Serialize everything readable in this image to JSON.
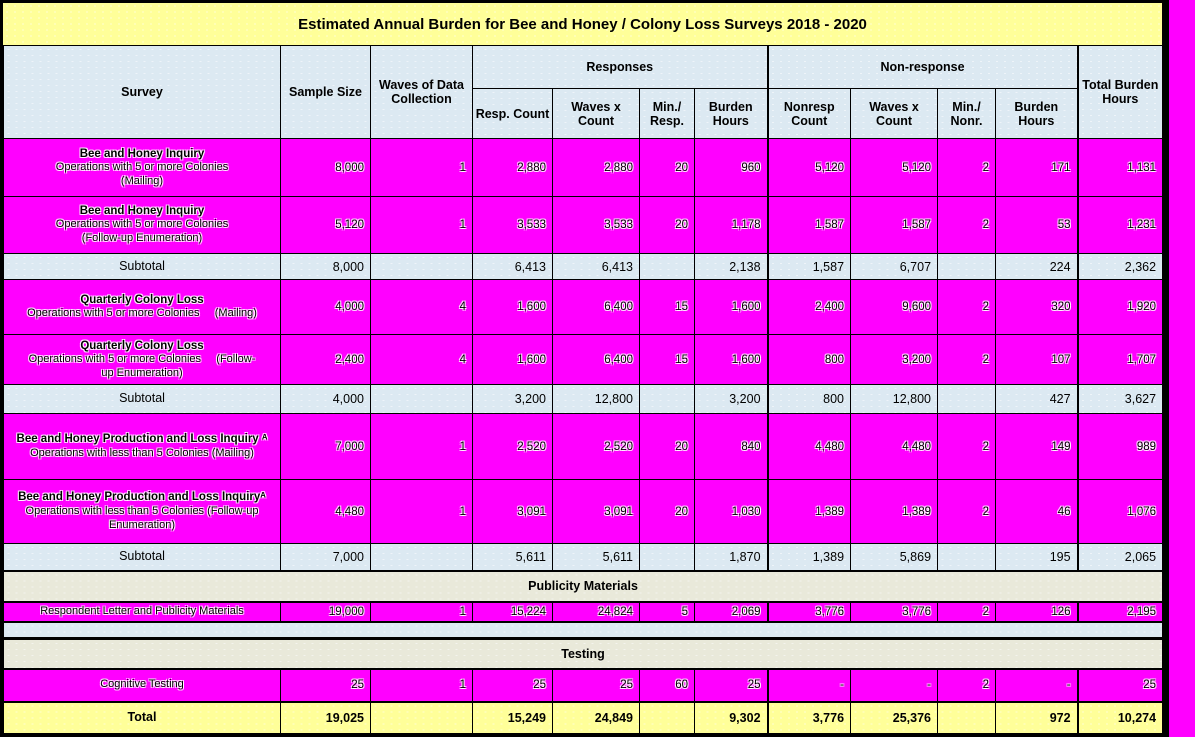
{
  "title": "Estimated Annual Burden for Bee and Honey / Colony Loss Surveys 2018 - 2020",
  "header": {
    "survey": "Survey",
    "sample_size": "Sample Size",
    "waves": "Waves of Data Collection",
    "responses_group": "Responses",
    "nonresponse_group": "Non-response",
    "total_burden": "Total Burden Hours",
    "resp_cols": [
      "Resp. Count",
      "Waves x Count",
      "Min./ Resp.",
      "Burden Hours"
    ],
    "nonresp_cols": [
      "Nonresp Count",
      "Waves x Count",
      "Min./ Nonr.",
      "Burden Hours"
    ]
  },
  "rows": [
    {
      "type": "data",
      "name": {
        "layout": "block",
        "bold": "Bee and Honey Inquiry",
        "normal": [
          "Operations with 5 or more Colonies",
          "(Mailing)"
        ]
      },
      "cells": [
        "8,000",
        "1",
        "2,880",
        "2,880",
        "20",
        "960",
        "5,120",
        "5,120",
        "2",
        "171",
        "1,131"
      ]
    },
    {
      "type": "data",
      "name": {
        "layout": "block",
        "bold": "Bee and Honey Inquiry",
        "normal": [
          "Operations with 5 or more Colonies",
          "(Follow-up Enumeration)"
        ]
      },
      "cells": [
        "5,120",
        "1",
        "3,533",
        "3,533",
        "20",
        "1,178",
        "1,587",
        "1,587",
        "2",
        "53",
        "1,231"
      ]
    },
    {
      "type": "subtotal",
      "label": "Subtotal",
      "cells": [
        "8,000",
        "",
        "6,413",
        "6,413",
        "",
        "2,138",
        "1,587",
        "6,707",
        "",
        "224",
        "2,362"
      ]
    },
    {
      "type": "data",
      "name": {
        "layout": "block",
        "bold": "Quarterly Colony Loss",
        "normal": [
          "Operations with 5 or more Colonies     (Mailing)"
        ]
      },
      "cells": [
        "4,000",
        "4",
        "1,600",
        "6,400",
        "15",
        "1,600",
        "2,400",
        "9,600",
        "2",
        "320",
        "1,920"
      ]
    },
    {
      "type": "data",
      "name": {
        "layout": "block",
        "bold": "Quarterly Colony Loss",
        "normal": [
          "Operations with 5 or more Colonies     (Follow-",
          "up Enumeration)"
        ]
      },
      "cells": [
        "2,400",
        "4",
        "1,600",
        "6,400",
        "15",
        "1,600",
        "800",
        "3,200",
        "2",
        "107",
        "1,707"
      ]
    },
    {
      "type": "subtotal",
      "label": "Subtotal",
      "cells": [
        "4,000",
        "",
        "3,200",
        "12,800",
        "",
        "3,200",
        "800",
        "12,800",
        "",
        "427",
        "3,627"
      ]
    },
    {
      "type": "data",
      "name": {
        "layout": "inline",
        "bold": "Bee and Honey Production and Loss Inquiry ᴬ",
        "normal": [
          "Operations with less than 5 Colonies (Mailing)"
        ]
      },
      "cells": [
        "7,000",
        "1",
        "2,520",
        "2,520",
        "20",
        "840",
        "4,480",
        "4,480",
        "2",
        "149",
        "989"
      ]
    },
    {
      "type": "data",
      "name": {
        "layout": "inline",
        "bold": "Bee and Honey Production and Loss Inquiryᴬ",
        "normal": [
          "Operations with less than 5 Colonies (Follow-up Enumeration)"
        ]
      },
      "cells": [
        "4,480",
        "1",
        "3,091",
        "3,091",
        "20",
        "1,030",
        "1,389",
        "1,389",
        "2",
        "46",
        "1,076"
      ]
    },
    {
      "type": "subtotal",
      "label": "Subtotal",
      "cells": [
        "7,000",
        "",
        "5,611",
        "5,611",
        "",
        "1,870",
        "1,389",
        "5,869",
        "",
        "195",
        "2,065"
      ]
    },
    {
      "type": "section",
      "label": "Publicity Materials"
    },
    {
      "type": "data",
      "name": {
        "layout": "block",
        "bold": "",
        "normal": [
          "Respondent  Letter and Publicity Materials"
        ]
      },
      "cells": [
        "19,000",
        "1",
        "15,224",
        "24,824",
        "5",
        "2,069",
        "3,776",
        "3,776",
        "2",
        "126",
        "2,195"
      ]
    },
    {
      "type": "spacer"
    },
    {
      "type": "section",
      "label": "Testing"
    },
    {
      "type": "data",
      "name": {
        "layout": "block",
        "bold": "",
        "normal": [
          "Cognitive Testing"
        ]
      },
      "cells": [
        "25",
        "1",
        "25",
        "25",
        "60",
        "25",
        "-",
        "-",
        "2",
        "-",
        "25"
      ]
    },
    {
      "type": "total",
      "label": "Total",
      "cells": [
        "19,025",
        "",
        "15,249",
        "24,849",
        "",
        "9,302",
        "3,776",
        "25,376",
        "",
        "972",
        "10,274"
      ]
    }
  ]
}
